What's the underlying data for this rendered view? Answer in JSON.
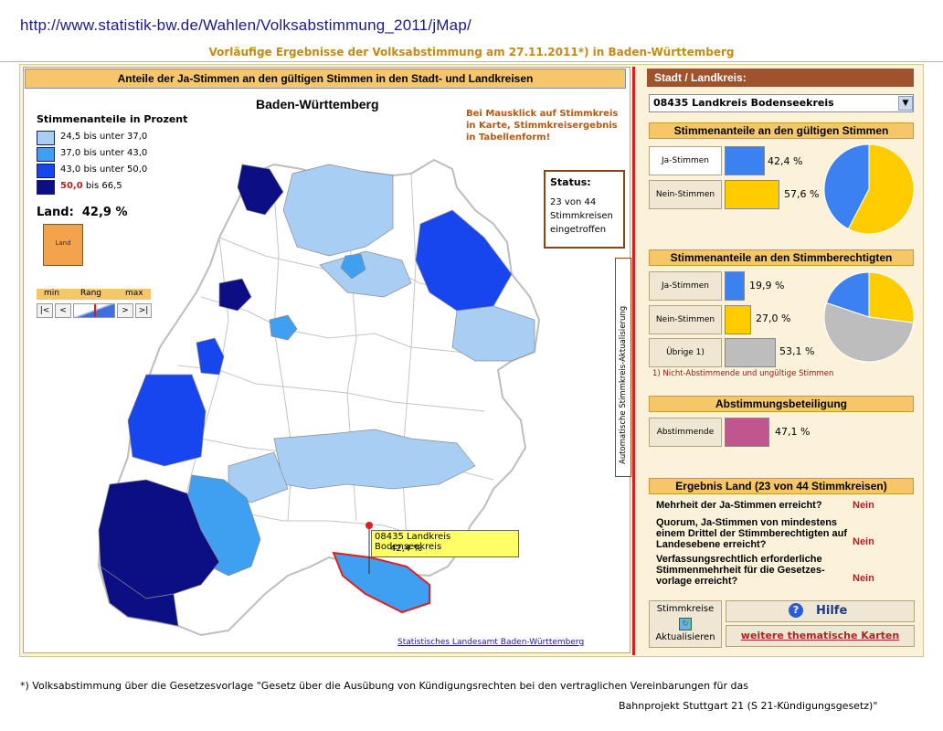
{
  "url": "http://www.statistik-bw.de/Wahlen/Volksabstimmung_2011/jMap/",
  "subtitle": "Vorläufige Ergebnisse der Volksabstimmung am 27.11.2011*) in Baden-Württemberg",
  "map_panel": {
    "header": "Anteile der Ja-Stimmen an den gültigen Stimmen in den Stadt- und Landkreisen",
    "map_title": "Baden-Württemberg",
    "legend_title": "Stimmenanteile in Prozent",
    "legend": [
      {
        "from": "24,5",
        "bis": "bis unter",
        "to": "37,0",
        "color": "#a8cef4"
      },
      {
        "from": "37,0",
        "bis": "bis unter",
        "to": "43,0",
        "color": "#3f9ff0"
      },
      {
        "from": "43,0",
        "bis": "bis unter",
        "to": "50,0",
        "color": "#1846ee"
      },
      {
        "from": "50,0",
        "bis": "bis",
        "to": "66,5",
        "color": "#0c0f84"
      }
    ],
    "land_label": "Land:",
    "land_value": "42,9 %",
    "land_icon_text": "Land",
    "range": {
      "min": "min",
      "rang": "Rang",
      "max": "max"
    },
    "range_buttons": [
      "|<",
      "<",
      ">",
      ">|"
    ],
    "click_hint": "Bei Mausklick auf Stimmkreis in Karte, Stimmkreisergebnis in Tabellenform!",
    "status_title": "Status:",
    "status_text": "23 von 44 Stimmkreisen eingetroffen",
    "vertical_label": "Automatische Stimmkreis-Aktualisierung",
    "tooltip_name": "08435 Landkreis Bodenseekreis",
    "tooltip_value": "42,4 %",
    "credit": "Statistisches Landesamt Baden-Württemberg"
  },
  "right_panel": {
    "kreis_header": "Stadt / Landkreis:",
    "kreis_select": "08435 Landkreis Bodenseekreis",
    "gueltig_header": "Stimmenanteile an den gültigen Stimmen",
    "gueltig": [
      {
        "label": "Ja-Stimmen",
        "value": "42,4 %",
        "pct": 42.4,
        "color": "#3b82f0"
      },
      {
        "label": "Nein-Stimmen",
        "value": "57,6 %",
        "pct": 57.6,
        "color": "#ffcc00"
      }
    ],
    "berechtigt_header": "Stimmenanteile an den Stimmberechtigten",
    "berechtigt": [
      {
        "label": "Ja-Stimmen",
        "value": "19,9 %",
        "pct": 19.9,
        "color": "#3b82f0"
      },
      {
        "label": "Nein-Stimmen",
        "value": "27,0 %",
        "pct": 27.0,
        "color": "#ffcc00"
      },
      {
        "label": "Übrige 1)",
        "value": "53,1 %",
        "pct": 53.1,
        "color": "#bdbdbd"
      }
    ],
    "footnote": "1) Nicht-Abstimmende und ungültige Stimmen",
    "beteiligung_header": "Abstimmungsbeteiligung",
    "beteiligung": {
      "label": "Abstimmende",
      "value": "47,1 %",
      "pct": 47.1,
      "color": "#c0568e"
    },
    "ergebnis_header": "Ergebnis Land  (23 von 44 Stimmkreisen)",
    "ergebnis": [
      {
        "q": "Mehrheit der Ja-Stimmen erreicht?",
        "a": "Nein"
      },
      {
        "q": "Quorum, Ja-Stimmen von mindestens einem Drittel der Stimmberechtigten auf Landesebene erreicht?",
        "a": "Nein"
      },
      {
        "q": "Verfassungsrechtlich erforderliche Stimmenmehrheit für die Gesetzes-vorlage erreicht?",
        "a": "Nein"
      }
    ],
    "refresh_line1": "Stimmkreise",
    "refresh_line2": "Aktualisieren",
    "help_label": "Hilfe",
    "more_maps": "weitere thematische Karten"
  },
  "footer_line1": "*) Volksabstimmung über die Gesetzesvorlage \"Gesetz über die Ausübung von Kündigungsrechten bei den vertraglichen Vereinbarungen für das",
  "footer_line2": "Bahnprojekt Stuttgart 21 (S 21-Kündigungsgesetz)\""
}
